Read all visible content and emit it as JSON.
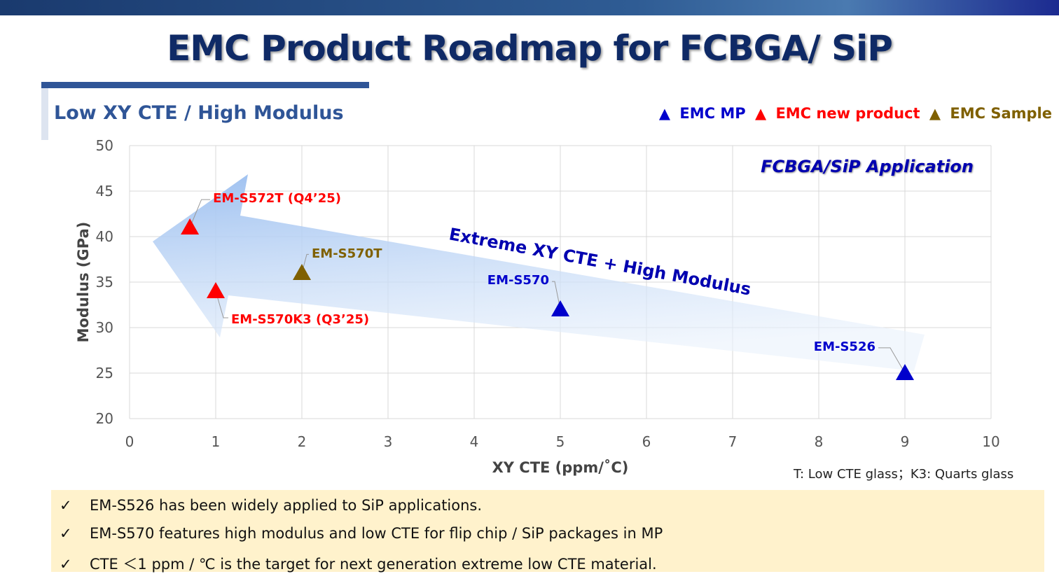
{
  "title": "EMC Product Roadmap for FCBGA/ SiP",
  "subtitle": "Low XY CTE / High Modulus",
  "legend": [
    {
      "label": "EMC MP",
      "color": "#0000cc"
    },
    {
      "label": "EMC new product",
      "color": "#ff0000"
    },
    {
      "label": "EMC Sample",
      "color": "#7f6000"
    }
  ],
  "chart_data": {
    "type": "scatter",
    "xlabel": "XY CTE (ppm/˚C)",
    "ylabel": "Modulus (GPa)",
    "xlim": [
      0,
      10
    ],
    "ylim": [
      20,
      50
    ],
    "xticks": [
      "0",
      "1",
      "2",
      "3",
      "4",
      "5",
      "6",
      "7",
      "8",
      "9",
      "10"
    ],
    "yticks": [
      "20",
      "25",
      "30",
      "35",
      "40",
      "45",
      "50"
    ],
    "grid": true,
    "legend_placement": "top-right",
    "annotation": "FCBGA/SiP Application",
    "arrow_label": "Extreme XY CTE + High Modulus",
    "points": [
      {
        "label": "EM-S572T (Q4’25)",
        "x": 0.7,
        "y": 41,
        "category": "EMC new product",
        "color": "#ff0000"
      },
      {
        "label": "EM-S570K3 (Q3’25)",
        "x": 1.0,
        "y": 34,
        "category": "EMC new product",
        "color": "#ff0000"
      },
      {
        "label": "EM-S570T",
        "x": 2.0,
        "y": 36,
        "category": "EMC Sample",
        "color": "#7f6000"
      },
      {
        "label": "EM-S570",
        "x": 5.0,
        "y": 32,
        "category": "EMC MP",
        "color": "#0000cc"
      },
      {
        "label": "EM-S526",
        "x": 9.0,
        "y": 25,
        "category": "EMC MP",
        "color": "#0000cc"
      }
    ]
  },
  "note": "T: Low CTE glass；K3: Quarts glass",
  "check": "✓",
  "bullets": [
    "EM-S526 has been widely applied to SiP applications.",
    "EM-S570 features high modulus and low CTE for flip chip / SiP packages in MP",
    "CTE ＜1 ppm / ℃ is the target for next generation extreme low CTE material."
  ]
}
